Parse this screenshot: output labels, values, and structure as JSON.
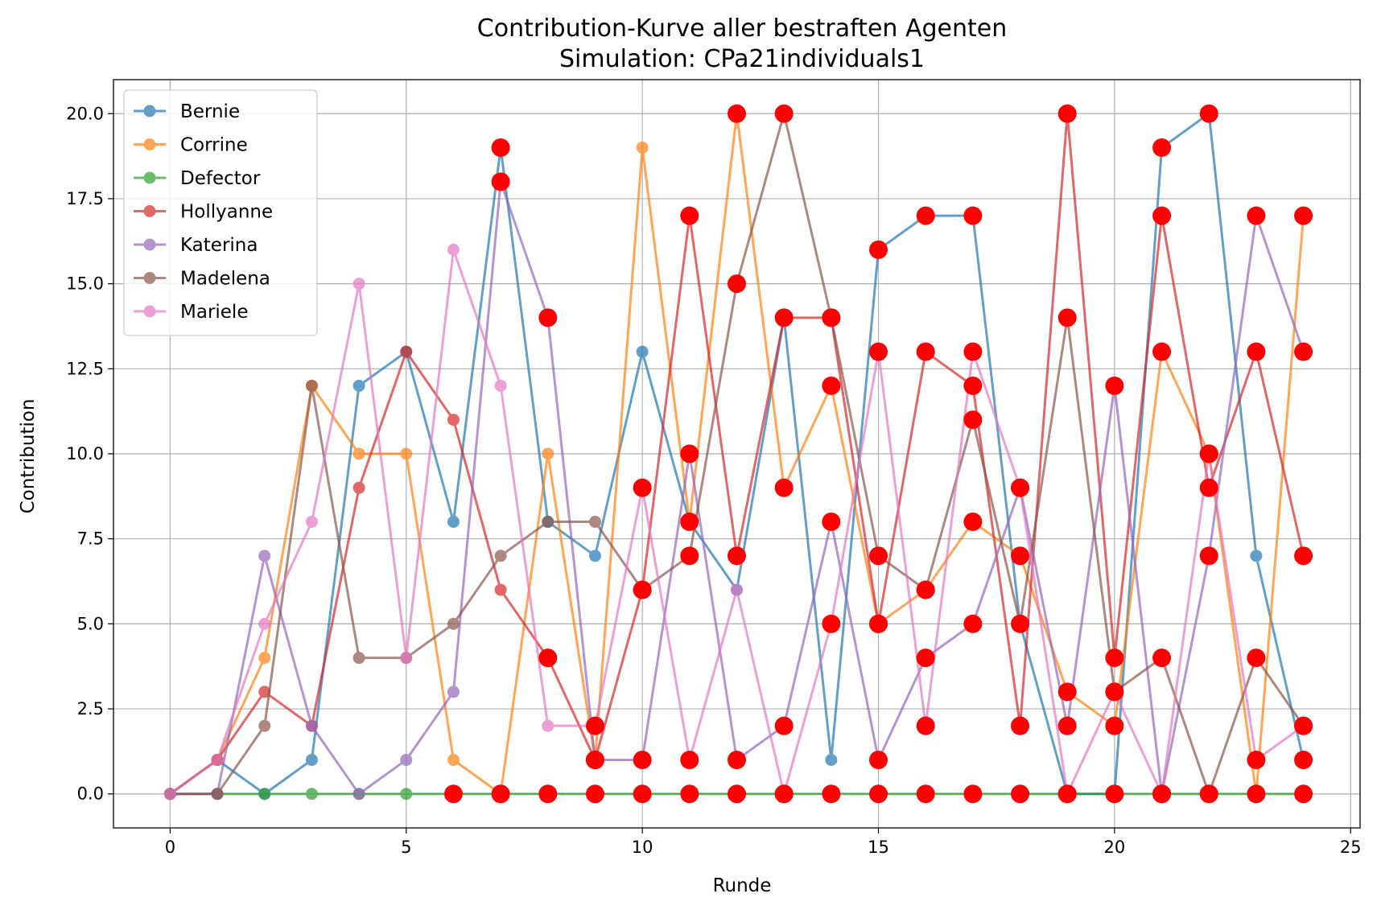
{
  "chart_data": {
    "type": "line",
    "title": "Contribution-Kurve aller bestraften Agenten",
    "subtitle": "Simulation: CPa21individuals1",
    "xlabel": "Runde",
    "ylabel": "Contribution",
    "xlim": [
      -1.2,
      25.2
    ],
    "ylim": [
      -1.0,
      21.0
    ],
    "xticks": [
      0,
      5,
      10,
      15,
      20,
      25
    ],
    "yticks": [
      0.0,
      2.5,
      5.0,
      7.5,
      10.0,
      12.5,
      15.0,
      17.5,
      20.0
    ],
    "xtick_labels": [
      "0",
      "5",
      "10",
      "15",
      "20",
      "25"
    ],
    "ytick_labels": [
      "0.0",
      "2.5",
      "5.0",
      "7.5",
      "10.0",
      "12.5",
      "15.0",
      "17.5",
      "20.0"
    ],
    "grid": true,
    "legend_position": "upper-left",
    "punished_marker_color": "#ff0000",
    "x": [
      0,
      1,
      2,
      3,
      4,
      5,
      6,
      7,
      8,
      9,
      10,
      11,
      12,
      13,
      14,
      15,
      16,
      17,
      18,
      19,
      20,
      21,
      22,
      23,
      24
    ],
    "series": [
      {
        "name": "Bernie",
        "color": "#1f77b4",
        "values": [
          0,
          1,
          0,
          1,
          12,
          13,
          8,
          19,
          8,
          7,
          13,
          8,
          6,
          14,
          1,
          16,
          17,
          17,
          5,
          0,
          0,
          19,
          20,
          7,
          1
        ],
        "punished": [
          7,
          15,
          16,
          17,
          21,
          22,
          24
        ]
      },
      {
        "name": "Corrine",
        "color": "#ff7f0e",
        "values": [
          0,
          1,
          4,
          12,
          10,
          10,
          1,
          0,
          10,
          1,
          19,
          8,
          20,
          9,
          12,
          5,
          6,
          8,
          7,
          3,
          2,
          13,
          10,
          0,
          17
        ],
        "punished": [
          7,
          9,
          11,
          12,
          13,
          14,
          15,
          16,
          17,
          18,
          19,
          20,
          21,
          22,
          24
        ]
      },
      {
        "name": "Defector",
        "color": "#2ca02c",
        "values": [
          0,
          0,
          0,
          0,
          0,
          0,
          0,
          0,
          0,
          0,
          0,
          0,
          0,
          0,
          0,
          0,
          0,
          0,
          0,
          0,
          0,
          0,
          0,
          0,
          0
        ],
        "punished": [
          6,
          7,
          8,
          9,
          10,
          11,
          12,
          13,
          14,
          15,
          16,
          17,
          18,
          19,
          20,
          21,
          22,
          23,
          24
        ]
      },
      {
        "name": "Hollyanne",
        "color": "#d62728",
        "values": [
          0,
          1,
          3,
          2,
          9,
          13,
          11,
          6,
          4,
          1,
          6,
          17,
          7,
          14,
          14,
          5,
          13,
          12,
          2,
          20,
          4,
          17,
          9,
          13,
          7
        ],
        "punished": [
          8,
          9,
          10,
          11,
          12,
          13,
          14,
          15,
          16,
          17,
          18,
          19,
          20,
          21,
          22,
          23,
          24
        ]
      },
      {
        "name": "Katerina",
        "color": "#9467bd",
        "values": [
          0,
          0,
          7,
          2,
          0,
          1,
          3,
          18,
          14,
          1,
          1,
          10,
          1,
          2,
          8,
          1,
          4,
          5,
          9,
          2,
          12,
          0,
          7,
          17,
          13
        ],
        "punished": [
          7,
          8,
          9,
          10,
          11,
          12,
          13,
          14,
          15,
          16,
          17,
          18,
          19,
          20,
          21,
          22,
          23,
          24
        ]
      },
      {
        "name": "Madelena",
        "color": "#8c564b",
        "values": [
          0,
          0,
          2,
          12,
          4,
          4,
          5,
          7,
          8,
          8,
          6,
          7,
          15,
          20,
          14,
          7,
          6,
          11,
          5,
          14,
          3,
          4,
          0,
          4,
          2
        ],
        "punished": [
          10,
          11,
          12,
          13,
          14,
          15,
          16,
          17,
          18,
          19,
          20,
          21,
          22,
          23,
          24
        ]
      },
      {
        "name": "Mariele",
        "color": "#e377c2",
        "values": [
          0,
          1,
          5,
          8,
          15,
          4,
          16,
          12,
          2,
          2,
          9,
          1,
          6,
          0,
          5,
          13,
          2,
          13,
          9,
          0,
          3,
          0,
          10,
          1,
          2
        ],
        "punished": [
          9,
          10,
          11,
          13,
          14,
          15,
          16,
          17,
          18,
          19,
          20,
          21,
          22,
          23,
          24
        ]
      }
    ]
  }
}
